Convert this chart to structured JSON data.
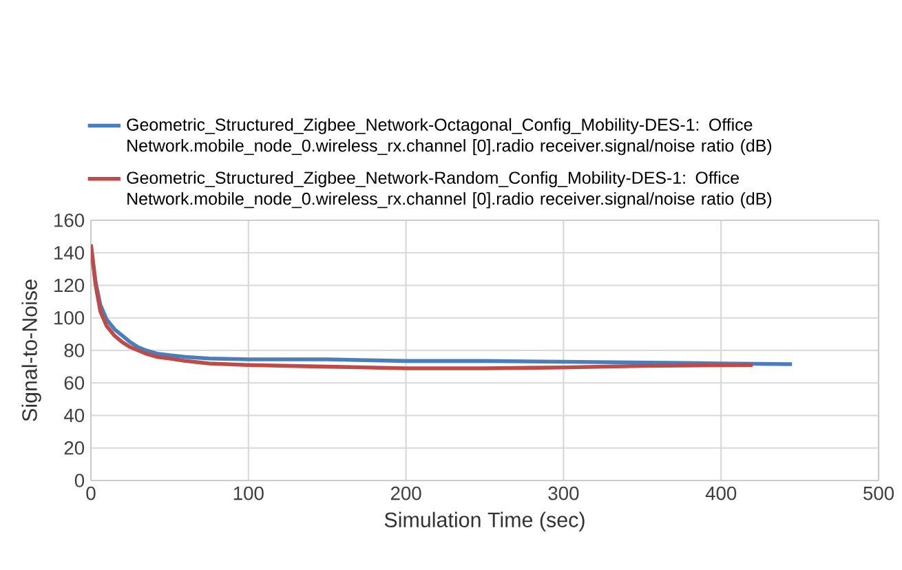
{
  "chart_data": {
    "type": "line",
    "xlabel": "Simulation Time (sec)",
    "ylabel": "Signal-to-Noise",
    "xlim": [
      0,
      500
    ],
    "xticks": [
      0,
      100,
      200,
      300,
      400,
      500
    ],
    "ylim": [
      0,
      160
    ],
    "yticks": [
      0,
      20,
      40,
      60,
      80,
      100,
      120,
      140,
      160
    ],
    "grid": true,
    "legend": "top",
    "marker": "none",
    "line_style": "solid",
    "series": [
      {
        "name": "Geometric_Structured_Zigbee_Network-Octagonal_Config_Mobility-DES-1: Office Network.mobile_node_0.wireless_rx.channel [0].radio receiver.signal/noise ratio (dB)",
        "color": "#4a7ebb",
        "x": [
          0,
          3,
          6,
          10,
          15,
          20,
          25,
          30,
          35,
          42,
          50,
          60,
          75,
          100,
          150,
          200,
          250,
          300,
          350,
          400,
          445
        ],
        "values": [
          145,
          122,
          108,
          99,
          93,
          89,
          85,
          82,
          80,
          78,
          77,
          76,
          75,
          74.5,
          74.5,
          73.5,
          73.5,
          73,
          72.5,
          72,
          71.5
        ]
      },
      {
        "name": "Geometric_Structured_Zigbee_Network-Random_Config_Mobility-DES-1: Office Network.mobile_node_0.wireless_rx.channel [0].radio receiver.signal/noise ratio (dB)",
        "color": "#be4b48",
        "x": [
          0,
          3,
          6,
          10,
          15,
          20,
          25,
          30,
          35,
          42,
          50,
          60,
          75,
          100,
          150,
          200,
          250,
          300,
          350,
          420
        ],
        "values": [
          145,
          120,
          104,
          95,
          89,
          85,
          82,
          80,
          78,
          76,
          75,
          73.5,
          72,
          71,
          70,
          69,
          69,
          69.5,
          70.5,
          71
        ]
      }
    ]
  }
}
